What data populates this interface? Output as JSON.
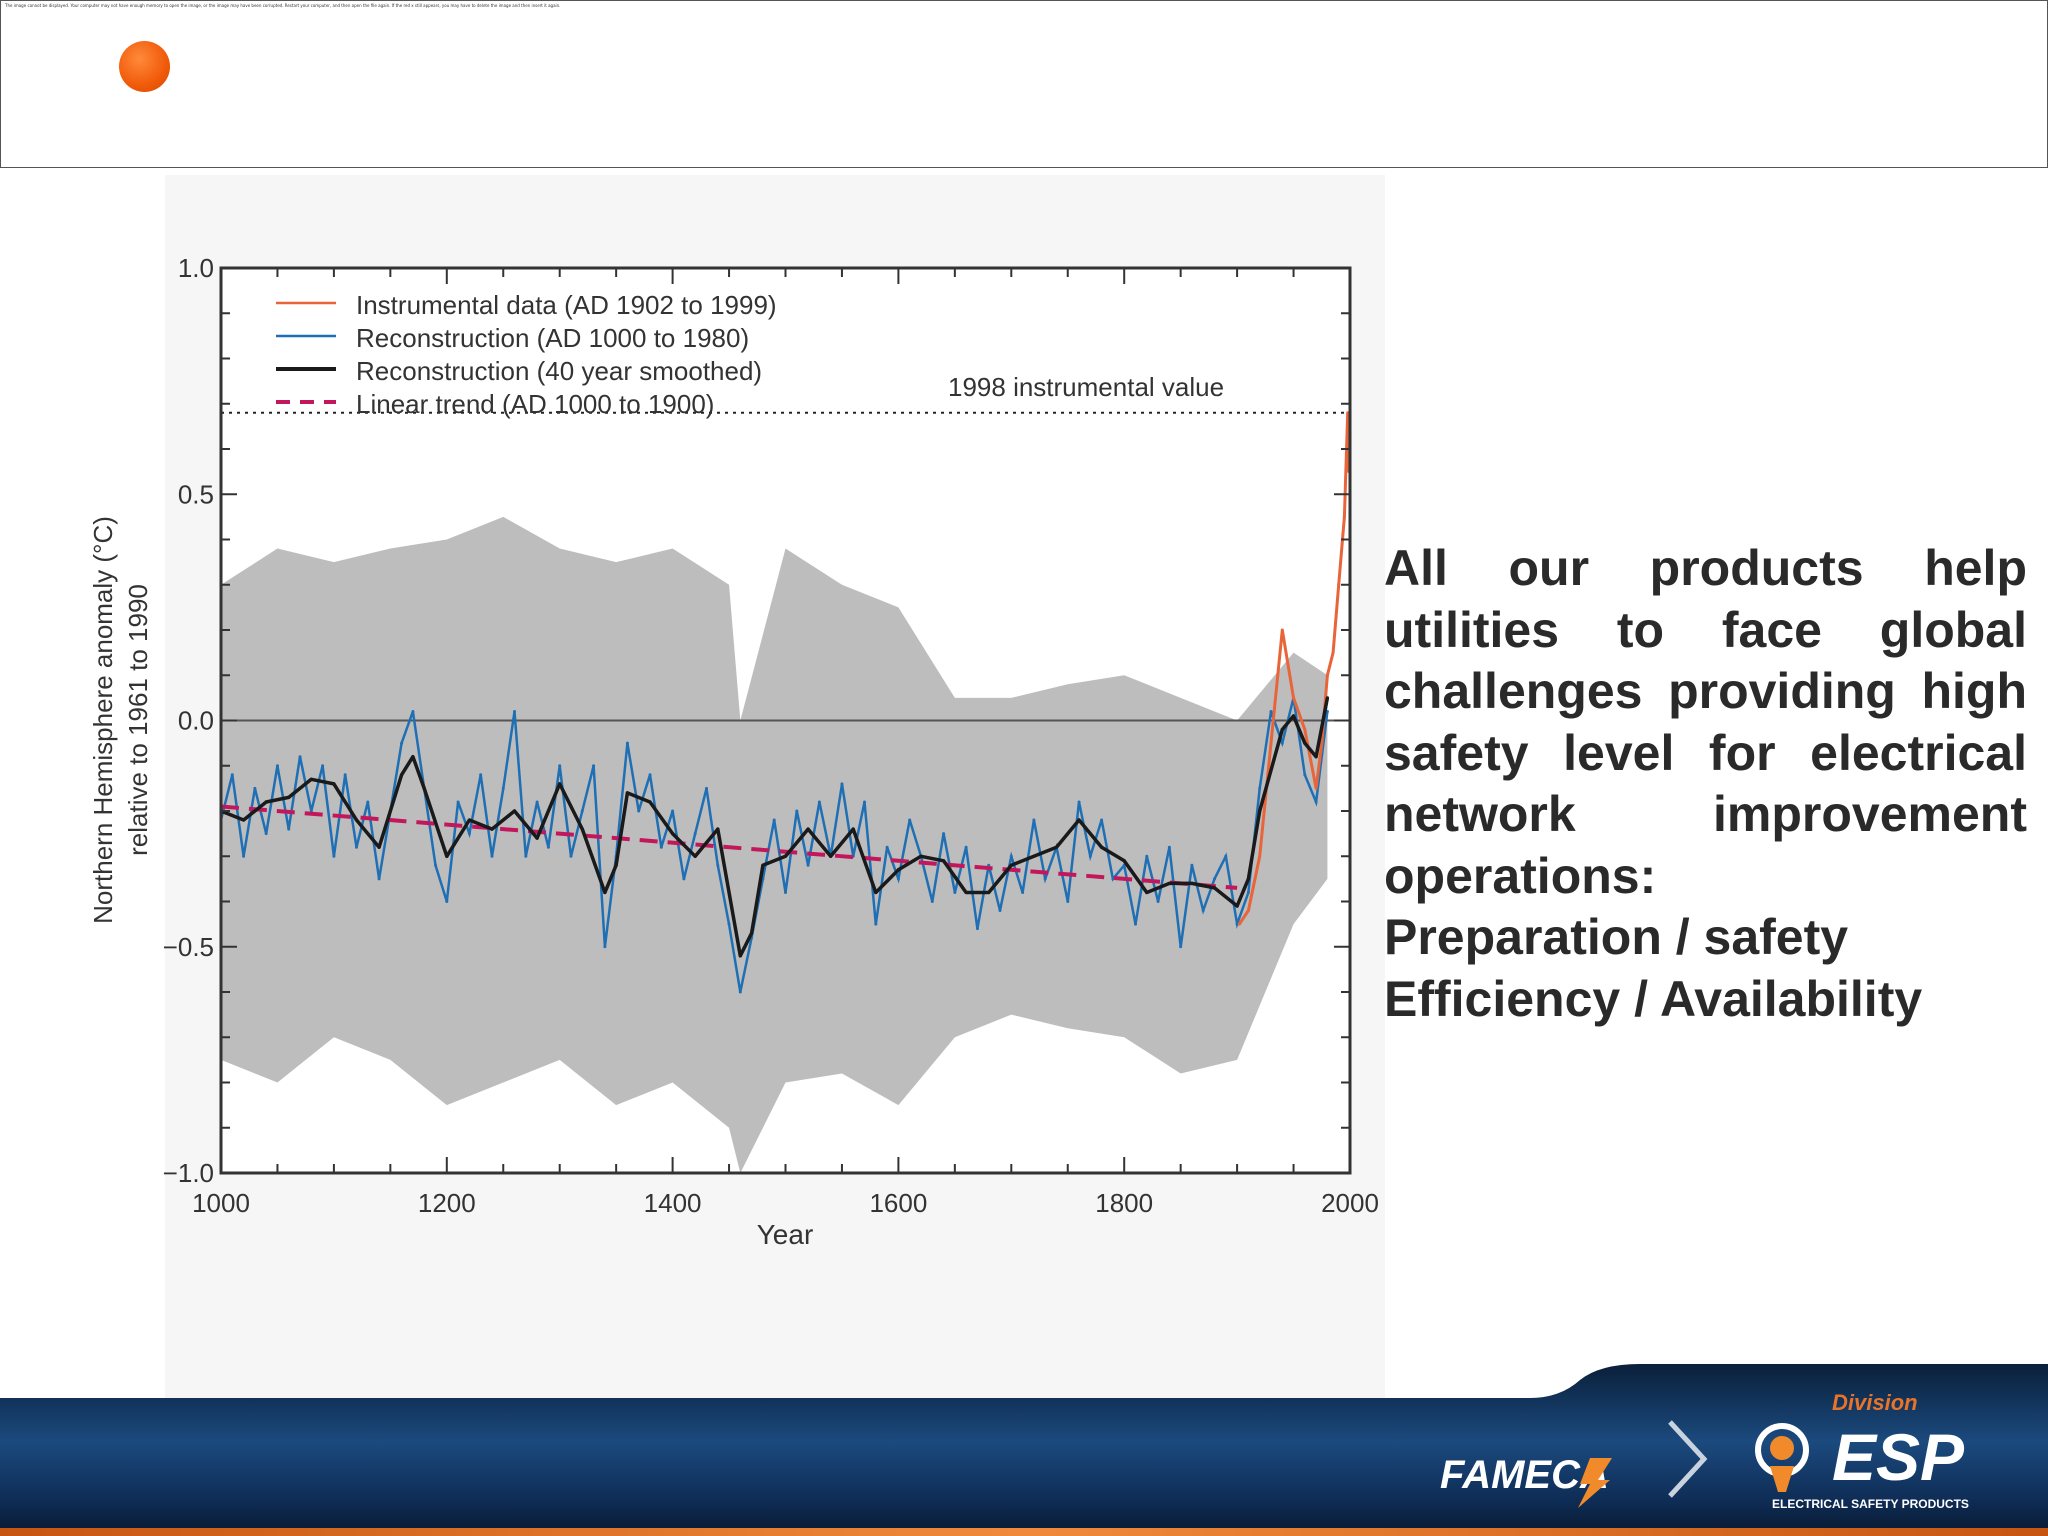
{
  "header": {
    "notice": "The image cannot be displayed. Your computer may not have enough memory to open the image, or the image may have been corrupted. Restart your computer, and then open the file again. If the red x still appears, you may have to delete the image and then insert it again."
  },
  "side_text": {
    "lines": [
      "All our products help",
      "utilities to face global",
      "challenges providing high",
      "safety level for electrical",
      "network improvement",
      "operations:",
      "Preparation  / safety",
      "Efficiency / Availability"
    ]
  },
  "footer": {
    "brand": "FAMECA",
    "division_label": "Division",
    "esp_name": "ESP",
    "esp_tagline": "ELECTRICAL SAFETY PRODUCTS"
  },
  "colors": {
    "bullet": "#f05a0a",
    "instrumental": "#e8653a",
    "reconstruction": "#1f6fb5",
    "smoothed": "#1a1a1a",
    "trend": "#c2185b",
    "uncertainty": "#bdbdbd",
    "footer_dark": "#0a2240",
    "footer_orange": "#e8742a",
    "side_text": "#2a2a2a"
  },
  "chart_data": {
    "type": "line",
    "title": "",
    "xlabel": "Year",
    "ylabel": "Northern Hemisphere anomaly (°C) relative to 1961 to 1990",
    "ylabel_lines": [
      "Northern Hemisphere anomaly (°C)",
      "relative to 1961 to 1990"
    ],
    "xlim": [
      1000,
      2000
    ],
    "ylim": [
      -1.0,
      1.0
    ],
    "xticks": [
      1000,
      1200,
      1400,
      1600,
      1800,
      2000
    ],
    "xtick_labels": [
      "1000",
      "1200",
      "1400",
      "1600",
      "1800",
      "2000"
    ],
    "yticks": [
      1.0,
      0.5,
      0.0,
      -0.5,
      -1.0
    ],
    "ytick_labels": [
      "1.0",
      "0.5",
      "0.0",
      "−0.5",
      "−1.0"
    ],
    "legend_position": "top-left",
    "legend": [
      "Instrumental data (AD 1902 to 1999)",
      "Reconstruction (AD 1000 to 1980)",
      "Reconstruction (40 year smoothed)",
      "Linear trend (AD 1000 to 1900)"
    ],
    "reference_line": {
      "value": 0.68,
      "label": "1998 instrumental value"
    },
    "zero_line": 0.0,
    "series": [
      {
        "name": "Reconstruction (40 year smoothed)",
        "x": [
          1000,
          1020,
          1040,
          1060,
          1080,
          1100,
          1120,
          1140,
          1160,
          1170,
          1180,
          1200,
          1220,
          1240,
          1260,
          1280,
          1300,
          1320,
          1340,
          1350,
          1360,
          1380,
          1400,
          1420,
          1440,
          1460,
          1470,
          1480,
          1500,
          1520,
          1540,
          1560,
          1580,
          1600,
          1620,
          1640,
          1660,
          1680,
          1700,
          1720,
          1740,
          1760,
          1780,
          1800,
          1820,
          1840,
          1860,
          1880,
          1900,
          1910,
          1920,
          1940,
          1950,
          1960,
          1970,
          1980
        ],
        "values": [
          -0.2,
          -0.22,
          -0.18,
          -0.17,
          -0.13,
          -0.14,
          -0.22,
          -0.28,
          -0.12,
          -0.08,
          -0.15,
          -0.3,
          -0.22,
          -0.24,
          -0.2,
          -0.26,
          -0.14,
          -0.24,
          -0.38,
          -0.32,
          -0.16,
          -0.18,
          -0.25,
          -0.3,
          -0.24,
          -0.52,
          -0.47,
          -0.32,
          -0.3,
          -0.24,
          -0.3,
          -0.24,
          -0.38,
          -0.33,
          -0.3,
          -0.31,
          -0.38,
          -0.38,
          -0.32,
          -0.3,
          -0.28,
          -0.22,
          -0.28,
          -0.31,
          -0.38,
          -0.36,
          -0.36,
          -0.37,
          -0.41,
          -0.35,
          -0.2,
          -0.02,
          0.01,
          -0.05,
          -0.08,
          0.05
        ]
      },
      {
        "name": "Reconstruction (AD 1000 to 1980)",
        "x": [
          1000,
          1010,
          1020,
          1030,
          1040,
          1050,
          1060,
          1070,
          1080,
          1090,
          1100,
          1110,
          1120,
          1130,
          1140,
          1150,
          1160,
          1170,
          1180,
          1190,
          1200,
          1210,
          1220,
          1230,
          1240,
          1250,
          1260,
          1270,
          1280,
          1290,
          1300,
          1310,
          1320,
          1330,
          1340,
          1350,
          1360,
          1370,
          1380,
          1390,
          1400,
          1410,
          1420,
          1430,
          1440,
          1450,
          1460,
          1470,
          1480,
          1490,
          1500,
          1510,
          1520,
          1530,
          1540,
          1550,
          1560,
          1570,
          1580,
          1590,
          1600,
          1610,
          1620,
          1630,
          1640,
          1650,
          1660,
          1670,
          1680,
          1690,
          1700,
          1710,
          1720,
          1730,
          1740,
          1750,
          1760,
          1770,
          1780,
          1790,
          1800,
          1810,
          1820,
          1830,
          1840,
          1850,
          1860,
          1870,
          1880,
          1890,
          1900,
          1910,
          1920,
          1930,
          1940,
          1950,
          1960,
          1970,
          1980
        ],
        "values": [
          -0.22,
          -0.12,
          -0.3,
          -0.15,
          -0.25,
          -0.1,
          -0.24,
          -0.08,
          -0.2,
          -0.1,
          -0.3,
          -0.12,
          -0.28,
          -0.18,
          -0.35,
          -0.2,
          -0.05,
          0.02,
          -0.15,
          -0.32,
          -0.4,
          -0.18,
          -0.25,
          -0.12,
          -0.3,
          -0.15,
          0.02,
          -0.3,
          -0.18,
          -0.28,
          -0.1,
          -0.3,
          -0.2,
          -0.1,
          -0.5,
          -0.3,
          -0.05,
          -0.2,
          -0.12,
          -0.28,
          -0.2,
          -0.35,
          -0.25,
          -0.15,
          -0.32,
          -0.45,
          -0.6,
          -0.48,
          -0.35,
          -0.22,
          -0.38,
          -0.2,
          -0.32,
          -0.18,
          -0.3,
          -0.14,
          -0.3,
          -0.18,
          -0.45,
          -0.28,
          -0.35,
          -0.22,
          -0.3,
          -0.4,
          -0.25,
          -0.38,
          -0.28,
          -0.46,
          -0.32,
          -0.42,
          -0.3,
          -0.38,
          -0.22,
          -0.35,
          -0.28,
          -0.4,
          -0.18,
          -0.3,
          -0.22,
          -0.35,
          -0.32,
          -0.45,
          -0.3,
          -0.4,
          -0.28,
          -0.5,
          -0.32,
          -0.42,
          -0.35,
          -0.3,
          -0.45,
          -0.38,
          -0.15,
          0.02,
          -0.05,
          0.05,
          -0.12,
          -0.18,
          0.02
        ]
      },
      {
        "name": "Instrumental data (AD 1902 to 1999)",
        "x": [
          1902,
          1910,
          1920,
          1930,
          1940,
          1950,
          1960,
          1970,
          1975,
          1980,
          1985,
          1990,
          1995,
          1998,
          1999
        ],
        "values": [
          -0.45,
          -0.42,
          -0.3,
          -0.05,
          0.2,
          0.05,
          -0.02,
          -0.15,
          -0.05,
          0.1,
          0.15,
          0.3,
          0.45,
          0.68,
          0.55
        ]
      },
      {
        "name": "Linear trend (AD 1000 to 1900)",
        "x": [
          1000,
          1900
        ],
        "values": [
          -0.19,
          -0.37
        ]
      }
    ],
    "uncertainty_band": {
      "x": [
        1000,
        1050,
        1100,
        1150,
        1200,
        1250,
        1300,
        1350,
        1400,
        1450,
        1460,
        1500,
        1550,
        1600,
        1650,
        1700,
        1750,
        1800,
        1850,
        1900,
        1950,
        1980
      ],
      "upper": [
        0.3,
        0.38,
        0.35,
        0.38,
        0.4,
        0.45,
        0.38,
        0.35,
        0.38,
        0.3,
        0.0,
        0.38,
        0.3,
        0.25,
        0.05,
        0.05,
        0.08,
        0.1,
        0.05,
        0.0,
        0.15,
        0.1
      ],
      "lower": [
        -0.75,
        -0.8,
        -0.7,
        -0.75,
        -0.85,
        -0.8,
        -0.75,
        -0.85,
        -0.8,
        -0.9,
        -1.0,
        -0.8,
        -0.78,
        -0.85,
        -0.7,
        -0.65,
        -0.68,
        -0.7,
        -0.78,
        -0.75,
        -0.45,
        -0.35
      ]
    }
  }
}
